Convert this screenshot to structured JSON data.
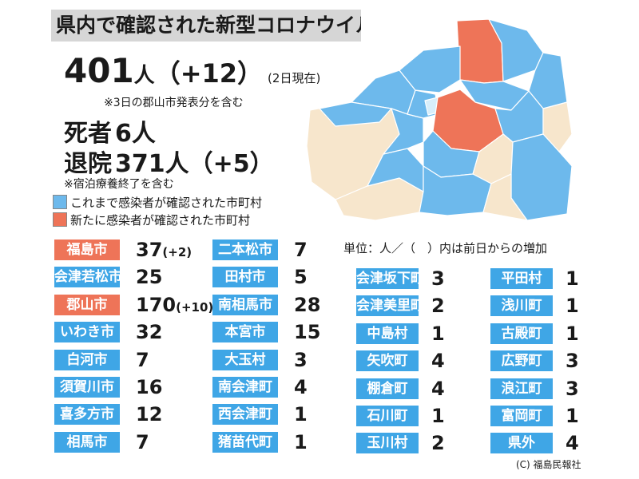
{
  "title": "県内で確認された新型コロナウイルス感染者",
  "total": {
    "count": "401",
    "unit": "人",
    "delta": "（+12）",
    "as_of": "(2日現在)"
  },
  "total_note": "※3日の郡山市発表分を含む",
  "deaths": {
    "label": "死者",
    "value": "6人"
  },
  "discharged": {
    "label": "退院",
    "value": "371人（+5）"
  },
  "discharged_note": "※宿泊療養終了を含む",
  "legend": [
    {
      "label": "これまで感染者が確認された市町村",
      "color": "#6db9ec"
    },
    {
      "label": "新たに感染者が確認された市町村",
      "color": "#ee7458"
    }
  ],
  "unit_note": "単位：人／（　）内は前日からの増加",
  "colors": {
    "confirmed": "#3fa6e6",
    "new": "#ee7458",
    "map_confirmed": "#6db9ec",
    "map_none": "#f7e6cc",
    "map_light": "#d8eefa"
  },
  "municipalities": [
    {
      "name": "福島市",
      "count": "37",
      "inc": "(+2)",
      "new": true
    },
    {
      "name": "会津若松市",
      "count": "25",
      "inc": "",
      "new": false
    },
    {
      "name": "郡山市",
      "count": "170",
      "inc": "(+10)",
      "new": true
    },
    {
      "name": "いわき市",
      "count": "32",
      "inc": "",
      "new": false
    },
    {
      "name": "白河市",
      "count": "7",
      "inc": "",
      "new": false
    },
    {
      "name": "須賀川市",
      "count": "16",
      "inc": "",
      "new": false
    },
    {
      "name": "喜多方市",
      "count": "12",
      "inc": "",
      "new": false
    },
    {
      "name": "相馬市",
      "count": "7",
      "inc": "",
      "new": false
    },
    {
      "name": "二本松市",
      "count": "7",
      "inc": "",
      "new": false
    },
    {
      "name": "田村市",
      "count": "5",
      "inc": "",
      "new": false
    },
    {
      "name": "南相馬市",
      "count": "28",
      "inc": "",
      "new": false
    },
    {
      "name": "本宮市",
      "count": "15",
      "inc": "",
      "new": false
    },
    {
      "name": "大玉村",
      "count": "3",
      "inc": "",
      "new": false
    },
    {
      "name": "南会津町",
      "count": "4",
      "inc": "",
      "new": false
    },
    {
      "name": "西会津町",
      "count": "1",
      "inc": "",
      "new": false
    },
    {
      "name": "猪苗代町",
      "count": "1",
      "inc": "",
      "new": false
    },
    {
      "name": "会津坂下町",
      "count": "3",
      "inc": "",
      "new": false
    },
    {
      "name": "会津美里町",
      "count": "2",
      "inc": "",
      "new": false
    },
    {
      "name": "中島村",
      "count": "1",
      "inc": "",
      "new": false
    },
    {
      "name": "矢吹町",
      "count": "4",
      "inc": "",
      "new": false
    },
    {
      "name": "棚倉町",
      "count": "4",
      "inc": "",
      "new": false
    },
    {
      "name": "石川町",
      "count": "1",
      "inc": "",
      "new": false
    },
    {
      "name": "玉川村",
      "count": "2",
      "inc": "",
      "new": false
    },
    {
      "name": "平田村",
      "count": "1",
      "inc": "",
      "new": false
    },
    {
      "name": "浅川町",
      "count": "1",
      "inc": "",
      "new": false
    },
    {
      "name": "古殿町",
      "count": "1",
      "inc": "",
      "new": false
    },
    {
      "name": "広野町",
      "count": "3",
      "inc": "",
      "new": false
    },
    {
      "name": "浪江町",
      "count": "3",
      "inc": "",
      "new": false
    },
    {
      "name": "富岡町",
      "count": "1",
      "inc": "",
      "new": false
    },
    {
      "name": "県外",
      "count": "4",
      "inc": "",
      "new": false
    }
  ],
  "credit": "(C) 福島民報社"
}
